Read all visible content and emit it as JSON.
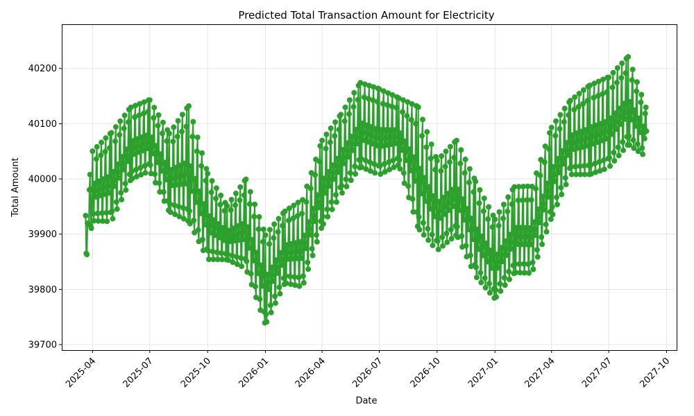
{
  "chart_data": {
    "type": "line",
    "title": "Predicted Total Transaction Amount for Electricity",
    "xlabel": "Date",
    "ylabel": "Total Amount",
    "x_range": [
      "2025-02-11",
      "2027-10-17"
    ],
    "ylim": [
      39690,
      40280
    ],
    "grid": true,
    "series_color": "#2ca02c",
    "x_ticks": [
      "2025-04",
      "2025-07",
      "2025-10",
      "2026-01",
      "2026-04",
      "2026-07",
      "2026-10",
      "2027-01",
      "2027-04",
      "2027-07",
      "2027-10"
    ],
    "y_ticks": [
      39700,
      39800,
      39900,
      40000,
      40100,
      40200
    ],
    "series": [
      {
        "values_summary": "daily predictions 2025-03-21 to 2027-08-30; weekly seasonal pattern with higher values in spring/summer",
        "monthly_envelope": [
          {
            "date": "2025-03-21",
            "high": 39950,
            "low": 39840
          },
          {
            "date": "2025-04-01",
            "high": 40075,
            "low": 39910
          },
          {
            "date": "2025-05-01",
            "high": 40115,
            "low": 39905
          },
          {
            "date": "2025-06-01",
            "high": 40155,
            "low": 39985
          },
          {
            "date": "2025-07-01",
            "high": 40168,
            "low": 40000
          },
          {
            "date": "2025-08-01",
            "high": 40110,
            "low": 39925
          },
          {
            "date": "2025-09-01",
            "high": 40173,
            "low": 39900
          },
          {
            "date": "2025-10-01",
            "high": 40040,
            "low": 39837
          },
          {
            "date": "2025-11-01",
            "high": 39970,
            "low": 39843
          },
          {
            "date": "2025-12-01",
            "high": 40031,
            "low": 39820
          },
          {
            "date": "2026-01-01",
            "high": 39930,
            "low": 39718
          },
          {
            "date": "2026-02-01",
            "high": 39967,
            "low": 39797
          },
          {
            "date": "2026-03-01",
            "high": 39993,
            "low": 39787
          },
          {
            "date": "2026-04-01",
            "high": 40100,
            "low": 39897
          },
          {
            "date": "2026-05-01",
            "high": 40145,
            "low": 39955
          },
          {
            "date": "2026-06-01",
            "high": 40204,
            "low": 40005
          },
          {
            "date": "2026-07-01",
            "high": 40193,
            "low": 39990
          },
          {
            "date": "2026-08-01",
            "high": 40170,
            "low": 40012
          },
          {
            "date": "2026-09-01",
            "high": 40173,
            "low": 39886
          },
          {
            "date": "2026-10-01",
            "high": 40065,
            "low": 39852
          },
          {
            "date": "2026-11-01",
            "high": 40103,
            "low": 39880
          },
          {
            "date": "2026-12-01",
            "high": 40029,
            "low": 39805
          },
          {
            "date": "2027-01-01",
            "high": 39955,
            "low": 39767
          },
          {
            "date": "2027-02-01",
            "high": 40016,
            "low": 39813
          },
          {
            "date": "2027-03-01",
            "high": 40017,
            "low": 39812
          },
          {
            "date": "2027-04-01",
            "high": 40125,
            "low": 39912
          },
          {
            "date": "2027-05-01",
            "high": 40168,
            "low": 39993
          },
          {
            "date": "2027-06-01",
            "high": 40201,
            "low": 39990
          },
          {
            "date": "2027-07-01",
            "high": 40216,
            "low": 40002
          },
          {
            "date": "2027-08-01",
            "high": 40252,
            "low": 40045
          },
          {
            "date": "2027-08-30",
            "high": 40143,
            "low": 40030
          }
        ]
      }
    ]
  }
}
